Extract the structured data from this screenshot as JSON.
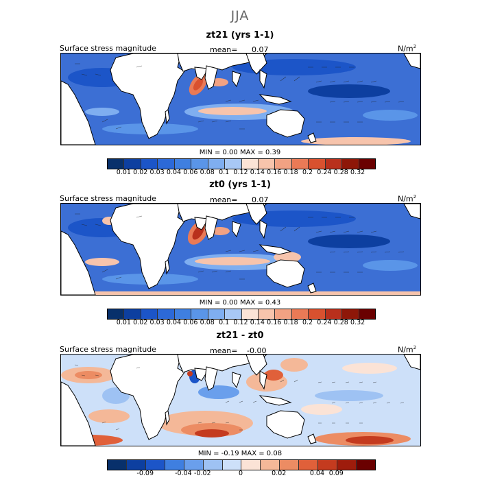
{
  "season": "JJA",
  "panels": [
    {
      "id": "zt21",
      "title": "zt21 (yrs 1-1)",
      "field_label": "Surface stress magnitude",
      "mean_label": "mean=",
      "mean_value": "0.07",
      "units": "N/m",
      "units_sup": "2",
      "minmax_text": "MIN =    0.00  MAX =    0.39",
      "colorbar_ticks": [
        "0.01",
        "0.02",
        "0.03",
        "0.04",
        "0.06",
        "0.08",
        "0.1",
        "0.12",
        "0.14",
        "0.16",
        "0.18",
        "0.2",
        "0.24",
        "0.28",
        "0.32"
      ]
    },
    {
      "id": "zt0",
      "title": "zt0 (yrs 1-1)",
      "field_label": "Surface stress magnitude",
      "mean_label": "mean=",
      "mean_value": "0.07",
      "units": "N/m",
      "units_sup": "2",
      "minmax_text": "MIN =    0.00  MAX =    0.43",
      "colorbar_ticks": [
        "0.01",
        "0.02",
        "0.03",
        "0.04",
        "0.06",
        "0.08",
        "0.1",
        "0.12",
        "0.14",
        "0.16",
        "0.18",
        "0.2",
        "0.24",
        "0.28",
        "0.32"
      ]
    },
    {
      "id": "diff",
      "title": "zt21 - zt0",
      "field_label": "Surface stress magnitude",
      "mean_label": "mean=",
      "mean_value": "-0.00",
      "units": "N/m",
      "units_sup": "2",
      "minmax_text": "MIN =   -0.19  MAX =    0.08",
      "colorbar_ticks": [
        "-0.09",
        "-0.04",
        "-0.02",
        "0",
        "0.02",
        "0.04",
        "0.09"
      ]
    }
  ],
  "colors": {
    "seq": [
      "#08306b",
      "#0d3fa0",
      "#1c55c8",
      "#2c69d8",
      "#3f7fe0",
      "#5a95e8",
      "#7faef0",
      "#a8c8f5",
      "#fbe3d6",
      "#f7c4ac",
      "#f2a283",
      "#ea7a56",
      "#d9512f",
      "#b9301c",
      "#8e1708",
      "#6a0000"
    ],
    "div": [
      "#08306b",
      "#0d3fa0",
      "#1c55c8",
      "#3f7fe0",
      "#6a9fec",
      "#9ec2f3",
      "#cde0f9",
      "#fbe3d6",
      "#f4b898",
      "#ec8c63",
      "#e0603a",
      "#c43b1f",
      "#9e1c0c",
      "#6a0000"
    ],
    "land": "#ffffff"
  }
}
